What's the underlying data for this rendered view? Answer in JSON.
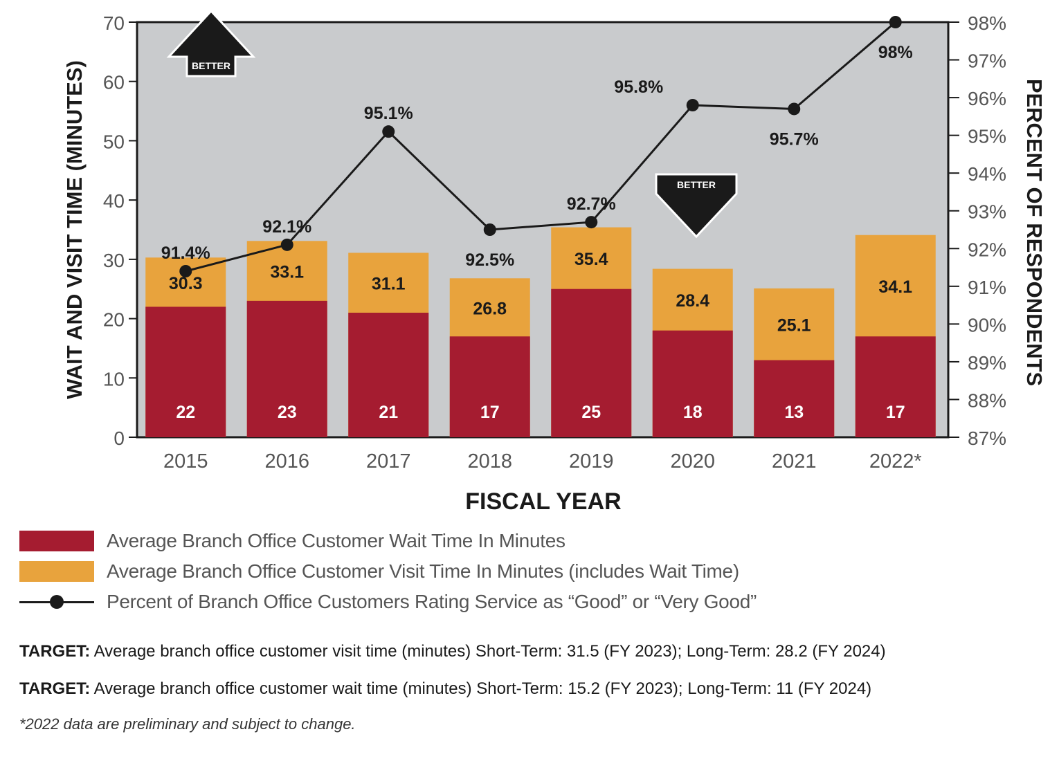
{
  "chart_data": {
    "type": "bar",
    "stacked_overlay": true,
    "categories": [
      "2015",
      "2016",
      "2017",
      "2018",
      "2019",
      "2020",
      "2021",
      "2022*"
    ],
    "series": [
      {
        "name": "Average Branch Office Customer Wait Time In Minutes",
        "axis": "left",
        "type": "bar",
        "values": [
          22,
          23,
          21,
          17,
          25,
          18,
          13,
          17
        ],
        "color": "#a51c30"
      },
      {
        "name": "Average Branch Office Customer Visit Time In Minutes (includes Wait Time)",
        "axis": "left",
        "type": "bar",
        "values": [
          30.3,
          33.1,
          31.1,
          26.8,
          35.4,
          28.4,
          25.1,
          34.1
        ],
        "color": "#e8a33d"
      },
      {
        "name": "Percent of Branch Office Customers Rating Service as “Good” or “Very Good”",
        "axis": "right",
        "type": "line",
        "values": [
          91.4,
          92.1,
          95.1,
          92.5,
          92.7,
          95.8,
          95.7,
          98
        ],
        "labels": [
          "91.4%",
          "92.1%",
          "95.1%",
          "92.5%",
          "92.7%",
          "95.8%",
          "95.7%",
          "98%"
        ],
        "color": "#1a1a1a"
      }
    ],
    "bar_labels": {
      "wait": [
        "22",
        "23",
        "21",
        "17",
        "25",
        "18",
        "13",
        "17"
      ],
      "visit": [
        "30.3",
        "33.1",
        "31.1",
        "26.8",
        "35.4",
        "28.4",
        "25.1",
        "34.1"
      ]
    },
    "xlabel": "FISCAL YEAR",
    "ylabel": "WAIT AND VISIT TIME (MINUTES)",
    "y2label": "PERCENT OF RESPONDENTS",
    "ylim": [
      0,
      70
    ],
    "y2lim": [
      87,
      98
    ],
    "yticks": [
      "0",
      "10",
      "20",
      "30",
      "40",
      "50",
      "60",
      "70"
    ],
    "y2ticks": [
      "87%",
      "88%",
      "89%",
      "90%",
      "91%",
      "92%",
      "93%",
      "94%",
      "95%",
      "96%",
      "97%",
      "98%"
    ],
    "annotations": [
      {
        "text": "BETTER",
        "arrow": "up"
      },
      {
        "text": "BETTER",
        "arrow": "down"
      }
    ],
    "background": "#c9cbcd",
    "grid": false,
    "legend_position": "bottom"
  },
  "legend": [
    {
      "label": "Average Branch Office Customer Wait Time In Minutes",
      "color": "#a51c30"
    },
    {
      "label": "Average Branch Office Customer Visit Time In Minutes (includes Wait Time)",
      "color": "#e8a33d"
    },
    {
      "label": "Percent of Branch Office Customers Rating Service as “Good” or “Very Good”"
    }
  ],
  "targets": [
    {
      "label": "TARGET:",
      "text": "Average branch office customer visit time (minutes)  Short-Term: 31.5 (FY 2023); Long-Term: 28.2 (FY 2024)"
    },
    {
      "label": "TARGET:",
      "text": "Average branch office customer wait time (minutes) Short-Term: 15.2 (FY 2023); Long-Term: 11 (FY 2024)"
    }
  ],
  "footnote": "*2022 data are preliminary and subject to change."
}
